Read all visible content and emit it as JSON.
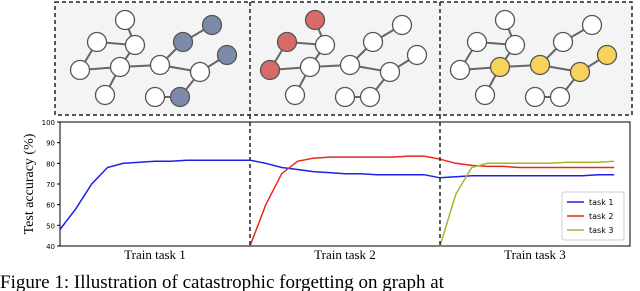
{
  "chart_data": {
    "type": "line",
    "ylabel": "Test accuracy (%)",
    "sections": [
      "Train task 1",
      "Train task 2",
      "Train task 3"
    ],
    "ylim": [
      40,
      100
    ],
    "yticks": [
      40,
      50,
      60,
      70,
      80,
      90,
      100
    ],
    "legend": "lower right",
    "series": [
      {
        "name": "task 1",
        "color": "#1f1fe6",
        "values": [
          48,
          58,
          70,
          78,
          80,
          80.5,
          81,
          81,
          81.5,
          81.5,
          81.5,
          81.5,
          81.5,
          80,
          78,
          77,
          76,
          75.5,
          75,
          75,
          74.5,
          74.5,
          74.5,
          74.5,
          73,
          73.5,
          74,
          74,
          74,
          74,
          74,
          74,
          74,
          74,
          74.5,
          74.5
        ]
      },
      {
        "name": "task 2",
        "color": "#e8281e",
        "values": [
          null,
          null,
          null,
          null,
          null,
          null,
          null,
          null,
          null,
          null,
          null,
          null,
          40,
          60,
          75,
          81,
          82.5,
          83,
          83,
          83,
          83,
          83,
          83.5,
          83.5,
          82,
          80,
          79,
          78.5,
          78.5,
          78,
          78,
          78,
          78,
          78,
          78,
          78
        ]
      },
      {
        "name": "task 3",
        "color": "#a9b526",
        "values": [
          null,
          null,
          null,
          null,
          null,
          null,
          null,
          null,
          null,
          null,
          null,
          null,
          null,
          null,
          null,
          null,
          null,
          null,
          null,
          null,
          null,
          null,
          null,
          null,
          40,
          65,
          78,
          80,
          80,
          80,
          80,
          80,
          80.5,
          80.5,
          80.5,
          81
        ]
      }
    ]
  },
  "caption": "Figure 1: Illustration of catastrophic forgetting on graph at"
}
